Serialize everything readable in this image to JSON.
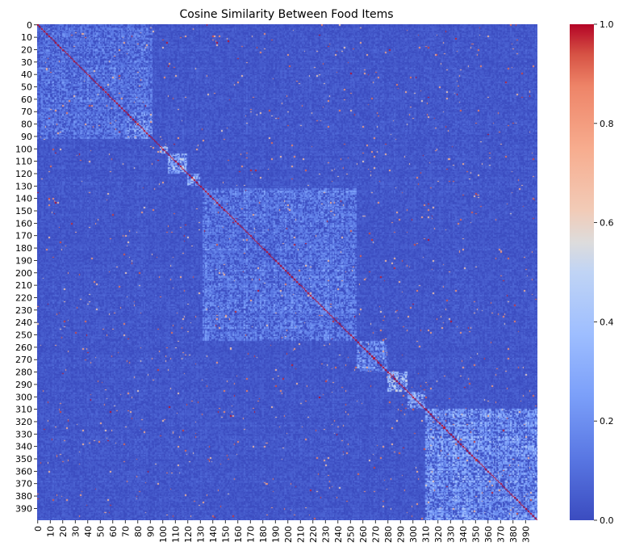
{
  "chart_data": {
    "type": "heatmap",
    "title": "Cosine Similarity Between Food Items",
    "xlabel": "",
    "ylabel": "",
    "n": 400,
    "x_tick_labels": [
      "0",
      "10",
      "20",
      "30",
      "40",
      "50",
      "60",
      "70",
      "80",
      "90",
      "100",
      "110",
      "120",
      "130",
      "140",
      "150",
      "160",
      "170",
      "180",
      "190",
      "200",
      "210",
      "220",
      "230",
      "240",
      "250",
      "260",
      "270",
      "280",
      "290",
      "300",
      "310",
      "320",
      "330",
      "340",
      "350",
      "360",
      "370",
      "380",
      "390"
    ],
    "y_tick_labels": [
      "0",
      "10",
      "20",
      "30",
      "40",
      "50",
      "60",
      "70",
      "80",
      "90",
      "100",
      "110",
      "120",
      "130",
      "140",
      "150",
      "160",
      "170",
      "180",
      "190",
      "200",
      "210",
      "220",
      "230",
      "240",
      "250",
      "260",
      "270",
      "280",
      "290",
      "300",
      "310",
      "320",
      "330",
      "340",
      "350",
      "360",
      "370",
      "380",
      "390"
    ],
    "colorbar": {
      "colormap": "coolwarm",
      "range": [
        0.0,
        1.0
      ],
      "tick_labels": [
        "0.0",
        "0.2",
        "0.4",
        "0.6",
        "0.8",
        "1.0"
      ]
    },
    "blocks": [
      {
        "from": 0,
        "to": 92,
        "level": 0.14
      },
      {
        "from": 70,
        "to": 92,
        "level": 0.22
      },
      {
        "from": 98,
        "to": 104,
        "level": 0.45
      },
      {
        "from": 104,
        "to": 120,
        "level": 0.32
      },
      {
        "from": 120,
        "to": 130,
        "level": 0.3
      },
      {
        "from": 132,
        "to": 255,
        "level": 0.16
      },
      {
        "from": 255,
        "to": 280,
        "level": 0.22
      },
      {
        "from": 280,
        "to": 296,
        "level": 0.4
      },
      {
        "from": 296,
        "to": 310,
        "level": 0.3
      },
      {
        "from": 310,
        "to": 400,
        "level": 0.24
      }
    ],
    "diagonal_value": 1.0,
    "colors": {
      "low": "#3b4cc0",
      "mid": "#dddcdc",
      "high": "#b40426"
    }
  }
}
